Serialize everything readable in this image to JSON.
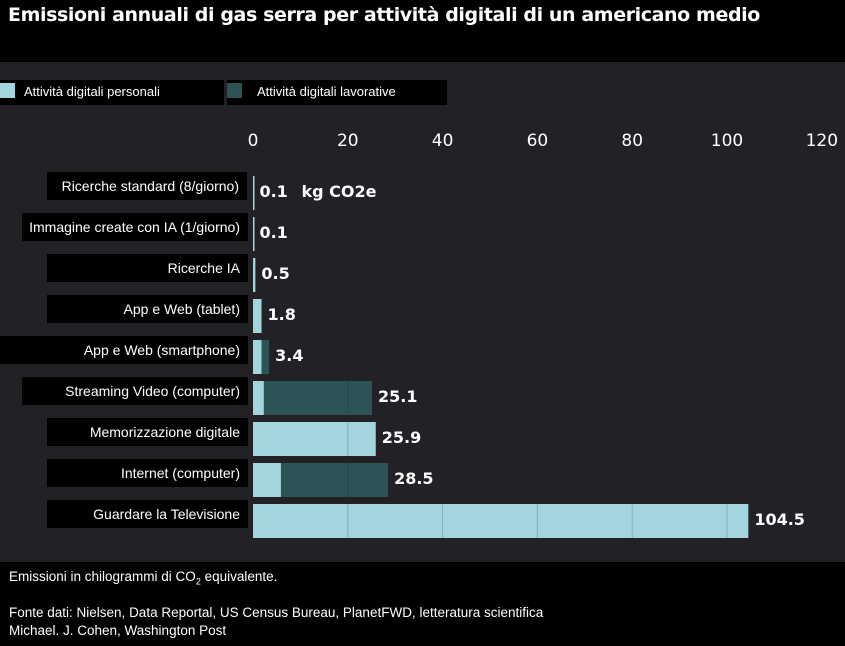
{
  "title": "Emissioni annuali di gas serra per attività digitali di un americano medio",
  "legend": {
    "personal": {
      "label": "Attività digitali personali",
      "color": "#a3d5dd"
    },
    "work": {
      "label": "Attività digitali lavorative",
      "color": "#2c5457"
    }
  },
  "unit_annotation": "kg CO2e",
  "footer": {
    "note_prefix": "Emissioni in chilogrammi di CO",
    "note_sub": "2",
    "note_suffix": " equivalente.",
    "source": "Fonte dati: Nielsen, Data Reportal, US Census Bureau, PlanetFWD, letteratura scientifica",
    "credit": "Michael. J. Cohen, Washington Post"
  },
  "chart_data": {
    "type": "bar",
    "orientation": "horizontal",
    "stacked": true,
    "categories": [
      "Ricerche standard (8/giorno)",
      "Immagine create con IA (1/giorno)",
      "Ricerche IA",
      "App e Web (tablet)",
      "App e Web (smartphone)",
      "Streaming Video (computer)",
      "Memorizzazione digitale",
      "Internet (computer)",
      "Guardare la Televisione"
    ],
    "series": [
      {
        "name": "Attività digitali personali",
        "values": [
          0.1,
          0.1,
          0.5,
          1.8,
          1.8,
          2.3,
          25.9,
          5.9,
          104.5
        ]
      },
      {
        "name": "Attività digitali lavorative",
        "values": [
          0,
          0,
          0,
          0,
          1.6,
          22.8,
          0,
          22.6,
          0
        ]
      }
    ],
    "totals": [
      "0.1",
      "0.1",
      "0.5",
      "1.8",
      "3.4",
      "25.1",
      "25.9",
      "28.5",
      "104.5"
    ],
    "xlim": [
      0,
      120
    ],
    "xticks": [
      0,
      20,
      40,
      60,
      80,
      100,
      120
    ],
    "grid": true,
    "legend_position": "top-left"
  }
}
